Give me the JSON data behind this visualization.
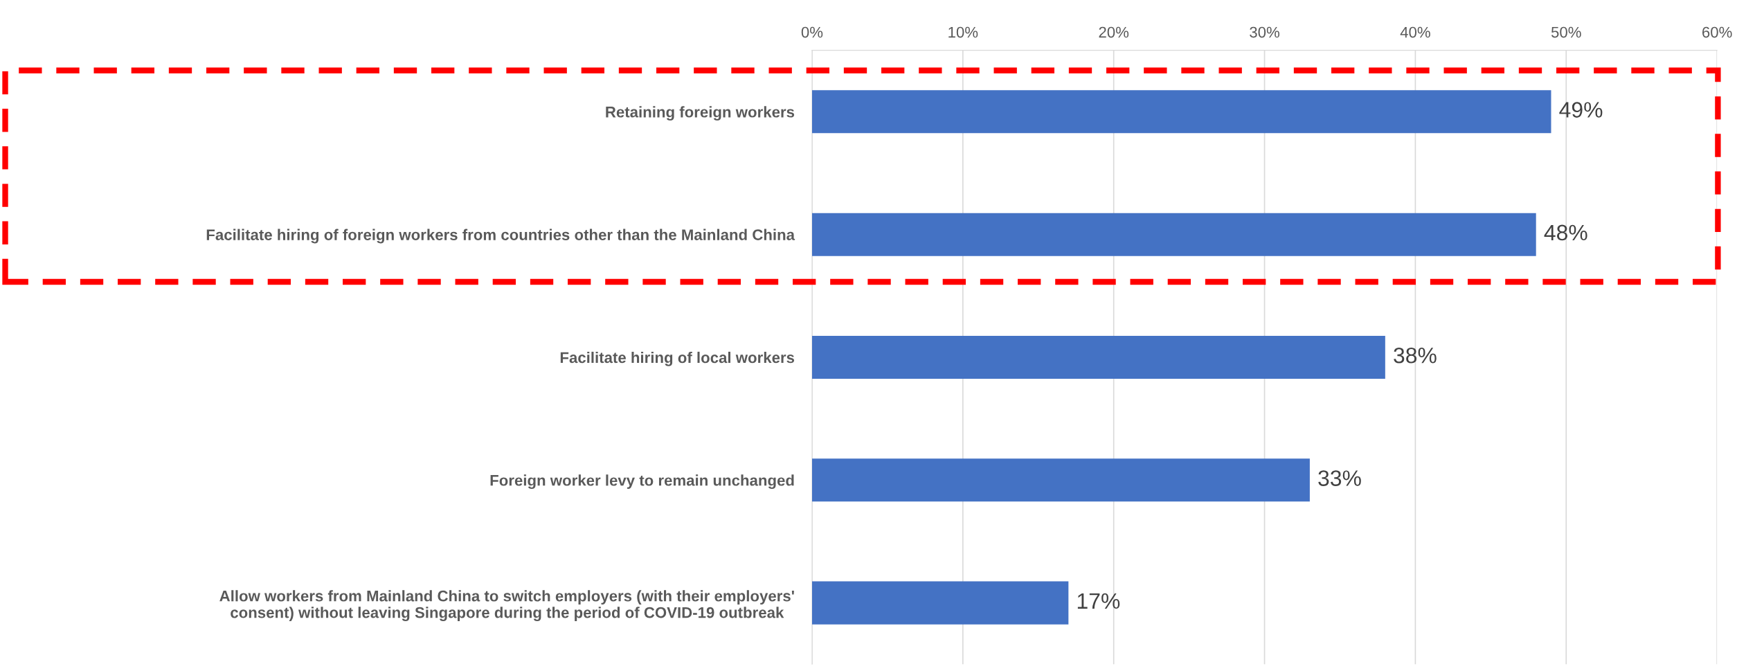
{
  "chart_data": {
    "type": "bar",
    "orientation": "horizontal",
    "categories": [
      "Retaining foreign workers",
      "Facilitate hiring of foreign workers from countries other than the Mainland China",
      "Facilitate hiring of local workers",
      "Foreign worker levy to remain unchanged",
      "Allow workers from Mainland China to switch employers (with their employers'\nconsent) without leaving Singapore during the period of COVID-19 outbreak"
    ],
    "values": [
      49,
      48,
      38,
      33,
      17
    ],
    "color": "#4472c4",
    "value_labels": [
      "49%",
      "48%",
      "38%",
      "33%",
      "17%"
    ],
    "xlim": [
      0,
      60
    ],
    "xticks": [
      {
        "value": 0,
        "label": "0%"
      },
      {
        "value": 10,
        "label": "10%"
      },
      {
        "value": 20,
        "label": "20%"
      },
      {
        "value": 30,
        "label": "30%"
      },
      {
        "value": 40,
        "label": "40%"
      },
      {
        "value": 50,
        "label": "50%"
      },
      {
        "value": 60,
        "label": "60%"
      }
    ],
    "grid": "x",
    "legend": false
  }
}
